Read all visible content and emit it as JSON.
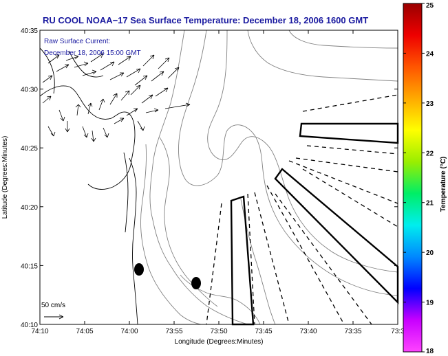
{
  "title": "RU COOL  NOAA−17  Sea Surface Temperature:  December 18, 2006 1600 GMT",
  "current_label_line1": "Raw Surface Current:",
  "current_label_line2": "December 18, 2006 15:00 GMT",
  "scale_label": "50 cm/s",
  "x_axis": {
    "label": "Longitude (Degrees:Minutes)",
    "ticks": [
      "74:10",
      "74:05",
      "74:00",
      "73:55",
      "73:50",
      "73:45",
      "73:40",
      "73:35",
      "73:3"
    ]
  },
  "y_axis": {
    "label": "Latitude (Degrees:Minutes)",
    "ticks": [
      "40:35",
      "40:30",
      "40:25",
      "40:20",
      "40:15",
      "40:10"
    ]
  },
  "colorbar": {
    "label": "Temperature (°C)",
    "ticks": [
      "25",
      "24",
      "23",
      "22",
      "21",
      "20",
      "19",
      "18"
    ],
    "range": [
      18,
      25
    ],
    "colors": [
      "#ff44ff",
      "#c800ff",
      "#0000ff",
      "#0088ff",
      "#00eeee",
      "#00ee66",
      "#99ee00",
      "#ffff00",
      "#ffaa00",
      "#ff5500",
      "#ee0000",
      "#990000"
    ]
  },
  "colors": {
    "title_text": "#1a1aa0",
    "contour": "#808080",
    "frame": "#000000"
  }
}
